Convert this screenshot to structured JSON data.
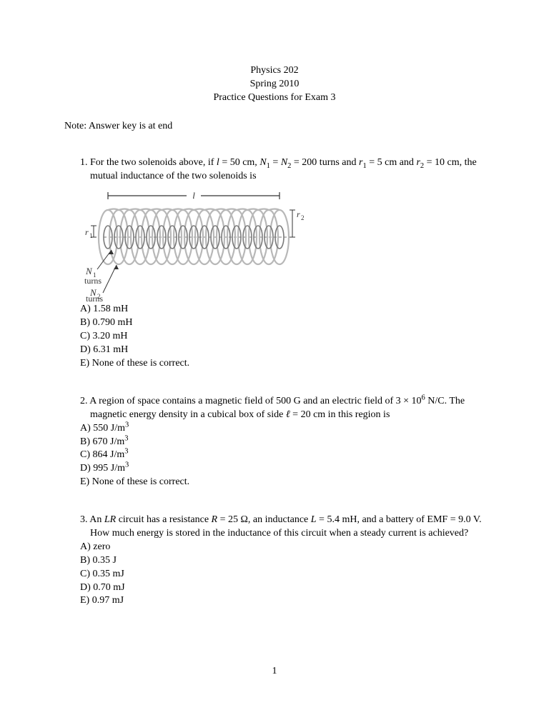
{
  "header": {
    "line1": "Physics 202",
    "line2": "Spring 2010",
    "line3": "Practice Questions for Exam 3"
  },
  "note": "Note: Answer key is at end",
  "q1": {
    "num": "1. ",
    "stem_a": "For the two solenoids above, if ",
    "l_sym": "l",
    "stem_b": " = 50 cm, ",
    "N": "N",
    "sub1": "1",
    "stem_c": " = ",
    "sub2": "2",
    "stem_d": " = 200 turns and ",
    "r": "r",
    "stem_e": " = 5 cm and ",
    "stem_f": " = 10 cm, the mutual inductance of the two solenoids is",
    "optA": "A) 1.58 mH",
    "optB": "B) 0.790 mH",
    "optC": "C) 3.20 mH",
    "optD": "D) 6.31 mH",
    "optE": "E) None of these is correct."
  },
  "fig": {
    "l_label": "l",
    "r1_label": "r",
    "r1_sub": "1",
    "r2_label": "r",
    "r2_sub": "2",
    "N1_label": "N",
    "N1_sub": "1",
    "N2_label": "N",
    "N2_sub": "2",
    "turns": "turns",
    "coil_light": "#b8b8b8",
    "coil_dark": "#7a7a7a",
    "text_color": "#333333"
  },
  "q2": {
    "num": "2. ",
    "stem_a": "A region of space contains a magnetic field of 500 G and an electric field of 3 × 10",
    "sup6": "6",
    "stem_b": " N/C.   The magnetic energy density in a cubical box of side ",
    "ell": "ℓ",
    "stem_c": " = 20 cm in this region is",
    "optA_a": "A) 550 J/m",
    "sup3": "3",
    "optB_a": "B) 670 J/m",
    "optC_a": "C) 864 J/m",
    "optD_a": "D) 995 J/m",
    "optE": "E) None of these is correct."
  },
  "q3": {
    "num": "3. ",
    "stem_a": "An ",
    "LR": "LR",
    "stem_b": " circuit has a resistance ",
    "R": "R",
    "stem_c": " = 25 Ω, an inductance ",
    "L": "L",
    "stem_d": " = 5.4 mH, and a battery of EMF = 9.0 V. How much energy is stored in the inductance of this circuit when a steady current is achieved?",
    "optA": "A) zero",
    "optB": "B) 0.35 J",
    "optC": "C) 0.35 mJ",
    "optD": "D) 0.70 mJ",
    "optE": "E) 0.97 mJ"
  },
  "page_number": "1"
}
